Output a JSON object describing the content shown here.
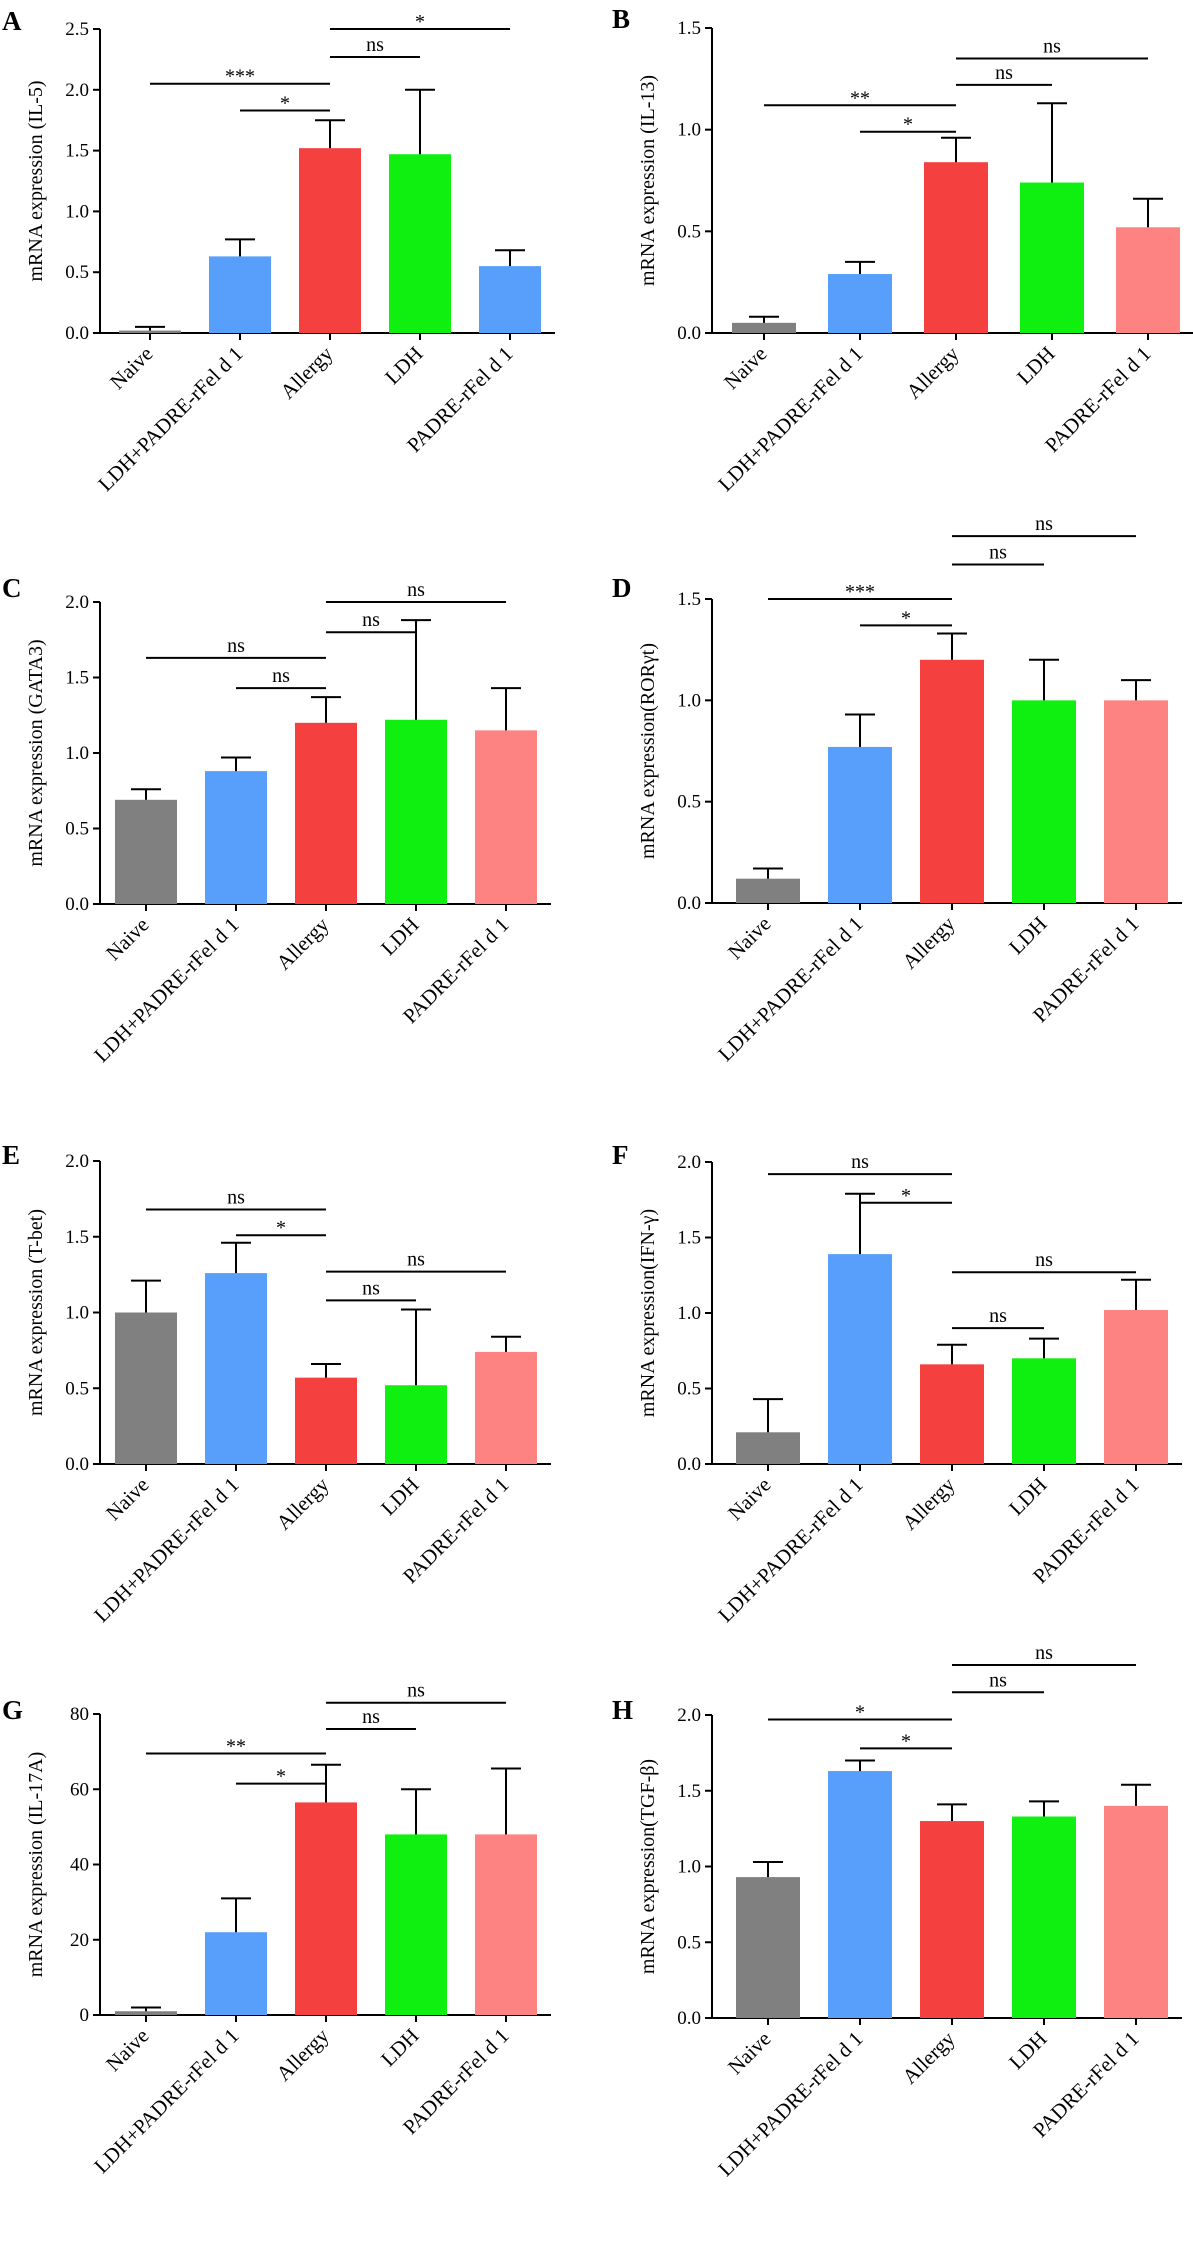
{
  "chart_data": [
    {
      "type": "bar",
      "panel": "A",
      "ylabel": "mRNA expression (IL-5)",
      "ylim": [
        0,
        2.5
      ],
      "yticks": [
        "0.0",
        "0.5",
        "1.0",
        "1.5",
        "2.0",
        "2.5"
      ],
      "categories": [
        "Naive",
        "LDH+PADRE-rFel d 1",
        "Allergy",
        "LDH",
        "PADRE-rFel d 1"
      ],
      "values": [
        0.02,
        0.63,
        1.52,
        1.47,
        0.55
      ],
      "errors": [
        0.03,
        0.14,
        0.23,
        0.53,
        0.13
      ],
      "colors": [
        "#808080",
        "#579ffa",
        "#f54040",
        "#10f010",
        "#579ffa"
      ],
      "annotations": [
        {
          "from": 2,
          "to": 4,
          "level": 2.5,
          "label": "*"
        },
        {
          "from": 2,
          "to": 3,
          "level": 2.27,
          "label": "ns"
        },
        {
          "from": 0,
          "to": 2,
          "level": 2.05,
          "label": "***"
        },
        {
          "from": 1,
          "to": 2,
          "level": 1.83,
          "label": "*"
        }
      ]
    },
    {
      "type": "bar",
      "panel": "B",
      "ylabel": "mRNA expression (IL-13)",
      "ylim": [
        0,
        1.5
      ],
      "yticks": [
        "0.0",
        "0.5",
        "1.0",
        "1.5"
      ],
      "categories": [
        "Naive",
        "LDH+PADRE-rFel d 1",
        "Allergy",
        "LDH",
        "PADRE-rFel d 1"
      ],
      "values": [
        0.05,
        0.29,
        0.84,
        0.74,
        0.52
      ],
      "errors": [
        0.03,
        0.06,
        0.12,
        0.39,
        0.14
      ],
      "colors": [
        "#808080",
        "#579ffa",
        "#f54040",
        "#10f010",
        "#fd8282"
      ],
      "annotations": [
        {
          "from": 2,
          "to": 4,
          "level": 1.35,
          "label": "ns"
        },
        {
          "from": 2,
          "to": 3,
          "level": 1.22,
          "label": "ns"
        },
        {
          "from": 0,
          "to": 2,
          "level": 1.12,
          "label": "**"
        },
        {
          "from": 1,
          "to": 2,
          "level": 0.99,
          "label": "*"
        }
      ]
    },
    {
      "type": "bar",
      "panel": "C",
      "ylabel": "mRNA expression (GATA3)",
      "ylim": [
        0,
        2.0
      ],
      "yticks": [
        "0.0",
        "0.5",
        "1.0",
        "1.5",
        "2.0"
      ],
      "categories": [
        "Naive",
        "LDH+PADRE-rFel d 1",
        "Allergy",
        "LDH",
        "PADRE-rFel d 1"
      ],
      "values": [
        0.69,
        0.88,
        1.2,
        1.22,
        1.15
      ],
      "errors": [
        0.07,
        0.09,
        0.17,
        0.66,
        0.28
      ],
      "colors": [
        "#808080",
        "#579ffa",
        "#f54040",
        "#10f010",
        "#fd8282"
      ],
      "annotations": [
        {
          "from": 2,
          "to": 4,
          "level": 2.0,
          "label": "ns"
        },
        {
          "from": 2,
          "to": 3,
          "level": 1.8,
          "label": "ns"
        },
        {
          "from": 0,
          "to": 2,
          "level": 1.63,
          "label": "ns"
        },
        {
          "from": 1,
          "to": 2,
          "level": 1.43,
          "label": "ns"
        }
      ]
    },
    {
      "type": "bar",
      "panel": "D",
      "ylabel": "mRNA expression(RORγt)",
      "ylim": [
        0,
        1.5
      ],
      "yticks": [
        "0.0",
        "0.5",
        "1.0",
        "1.5"
      ],
      "categories": [
        "Naive",
        "LDH+PADRE-rFel d 1",
        "Allergy",
        "LDH",
        "PADRE-rFel d 1"
      ],
      "values": [
        0.12,
        0.77,
        1.2,
        1.0,
        1.0
      ],
      "errors": [
        0.05,
        0.16,
        0.13,
        0.2,
        0.1
      ],
      "colors": [
        "#808080",
        "#579ffa",
        "#f54040",
        "#10f010",
        "#fd8282"
      ],
      "annotations": [
        {
          "from": 2,
          "to": 4,
          "level": 1.81,
          "label": "ns"
        },
        {
          "from": 2,
          "to": 3,
          "level": 1.67,
          "label": "ns"
        },
        {
          "from": 0,
          "to": 2,
          "level": 1.5,
          "label": "***"
        },
        {
          "from": 1,
          "to": 2,
          "level": 1.37,
          "label": "*"
        }
      ]
    },
    {
      "type": "bar",
      "panel": "E",
      "ylabel": "mRNA expression (T-bet)",
      "ylim": [
        0,
        2.0
      ],
      "yticks": [
        "0.0",
        "0.5",
        "1.0",
        "1.5",
        "2.0"
      ],
      "categories": [
        "Naive",
        "LDH+PADRE-rFel d 1",
        "Allergy",
        "LDH",
        "PADRE-rFel d 1"
      ],
      "values": [
        1.0,
        1.26,
        0.57,
        0.52,
        0.74
      ],
      "errors": [
        0.21,
        0.2,
        0.09,
        0.5,
        0.1
      ],
      "colors": [
        "#808080",
        "#579ffa",
        "#f54040",
        "#10f010",
        "#fd8282"
      ],
      "annotations": [
        {
          "from": 0,
          "to": 2,
          "level": 1.68,
          "label": "ns"
        },
        {
          "from": 1,
          "to": 2,
          "level": 1.51,
          "label": "*"
        },
        {
          "from": 2,
          "to": 4,
          "level": 1.27,
          "label": "ns"
        },
        {
          "from": 2,
          "to": 3,
          "level": 1.08,
          "label": "ns"
        }
      ]
    },
    {
      "type": "bar",
      "panel": "F",
      "ylabel": "mRNA expression(IFN-γ)",
      "ylim": [
        0,
        2.0
      ],
      "yticks": [
        "0.0",
        "0.5",
        "1.0",
        "1.5",
        "2.0"
      ],
      "categories": [
        "Naive",
        "LDH+PADRE-rFel d 1",
        "Allergy",
        "LDH",
        "PADRE-rFel d 1"
      ],
      "values": [
        0.21,
        1.39,
        0.66,
        0.7,
        1.02
      ],
      "errors": [
        0.22,
        0.4,
        0.13,
        0.13,
        0.2
      ],
      "colors": [
        "#808080",
        "#579ffa",
        "#f54040",
        "#10f010",
        "#fd8282"
      ],
      "annotations": [
        {
          "from": 0,
          "to": 2,
          "level": 1.92,
          "label": "ns"
        },
        {
          "from": 1,
          "to": 2,
          "level": 1.73,
          "label": "*"
        },
        {
          "from": 2,
          "to": 4,
          "level": 1.27,
          "label": "ns"
        },
        {
          "from": 2,
          "to": 3,
          "level": 0.9,
          "label": "ns"
        }
      ]
    },
    {
      "type": "bar",
      "panel": "G",
      "ylabel": "mRNA expression (IL-17A)",
      "ylim": [
        0,
        80
      ],
      "yticks": [
        "0",
        "20",
        "40",
        "60",
        "80"
      ],
      "categories": [
        "Naive",
        "LDH+PADRE-rFel d 1",
        "Allergy",
        "LDH",
        "PADRE-rFel d 1"
      ],
      "values": [
        1,
        22,
        56.5,
        48,
        48
      ],
      "errors": [
        1,
        9,
        10,
        12,
        17.5
      ],
      "colors": [
        "#808080",
        "#579ffa",
        "#f54040",
        "#10f010",
        "#fd8282"
      ],
      "annotations": [
        {
          "from": 2,
          "to": 4,
          "level": 83,
          "label": "ns"
        },
        {
          "from": 2,
          "to": 3,
          "level": 76,
          "label": "ns"
        },
        {
          "from": 0,
          "to": 2,
          "level": 69.5,
          "label": "**"
        },
        {
          "from": 1,
          "to": 2,
          "level": 61.5,
          "label": "*"
        }
      ]
    },
    {
      "type": "bar",
      "panel": "H",
      "ylabel": "mRNA expression(TGF-β)",
      "ylim": [
        0,
        2.0
      ],
      "yticks": [
        "0.0",
        "0.5",
        "1.0",
        "1.5",
        "2.0"
      ],
      "categories": [
        "Naive",
        "LDH+PADRE-rFel d 1",
        "Allergy",
        "LDH",
        "PADRE-rFel d 1"
      ],
      "values": [
        0.93,
        1.63,
        1.3,
        1.33,
        1.4
      ],
      "errors": [
        0.1,
        0.07,
        0.11,
        0.1,
        0.14
      ],
      "colors": [
        "#808080",
        "#579ffa",
        "#f54040",
        "#10f010",
        "#fd8282"
      ],
      "annotations": [
        {
          "from": 2,
          "to": 4,
          "level": 2.33,
          "label": "ns"
        },
        {
          "from": 2,
          "to": 3,
          "level": 2.15,
          "label": "ns"
        },
        {
          "from": 0,
          "to": 2,
          "level": 1.97,
          "label": "*"
        },
        {
          "from": 1,
          "to": 2,
          "level": 1.78,
          "label": "*"
        }
      ]
    }
  ]
}
